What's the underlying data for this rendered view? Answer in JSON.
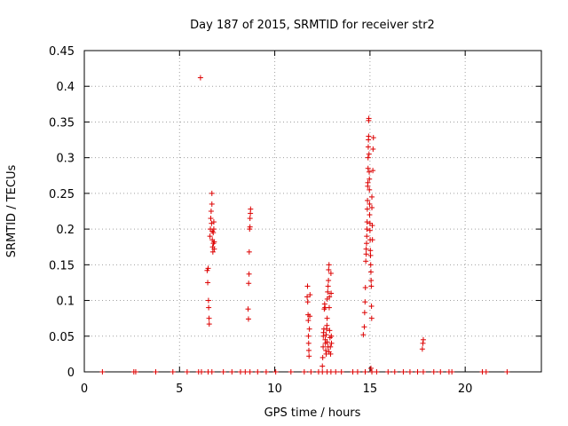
{
  "chart_data": {
    "type": "scatter",
    "title": "Day 187 of 2015, SRMTID for receiver str2",
    "xlabel": "GPS time / hours",
    "ylabel": "SRMTID / TECUs",
    "xlim": [
      0,
      24
    ],
    "ylim": [
      0,
      0.45
    ],
    "x_ticks": [
      "0",
      "5",
      "10",
      "15",
      "20"
    ],
    "y_ticks": [
      "0",
      "0.05",
      "0.1",
      "0.15",
      "0.2",
      "0.25",
      "0.3",
      "0.35",
      "0.4",
      "0.45"
    ],
    "grid": true,
    "marker": "+",
    "marker_color": "#dd0000",
    "series": [
      {
        "points": [
          [
            0.95,
            0
          ],
          [
            2.6,
            0
          ],
          [
            2.7,
            0
          ],
          [
            3.75,
            0
          ],
          [
            4.65,
            0
          ],
          [
            5.4,
            0
          ],
          [
            6.0,
            0
          ],
          [
            6.15,
            0
          ],
          [
            6.5,
            0
          ],
          [
            6.7,
            0
          ],
          [
            7.3,
            0
          ],
          [
            7.75,
            0
          ],
          [
            8.2,
            0
          ],
          [
            8.45,
            0
          ],
          [
            8.7,
            0
          ],
          [
            9.1,
            0
          ],
          [
            9.55,
            0
          ],
          [
            10.05,
            0
          ],
          [
            10.85,
            0
          ],
          [
            11.55,
            0
          ],
          [
            11.9,
            0
          ],
          [
            12.3,
            0
          ],
          [
            12.5,
            0
          ],
          [
            12.75,
            0
          ],
          [
            12.95,
            0
          ],
          [
            13.2,
            0
          ],
          [
            13.5,
            0
          ],
          [
            14.1,
            0
          ],
          [
            14.35,
            0
          ],
          [
            14.75,
            0
          ],
          [
            15.1,
            0
          ],
          [
            15.35,
            0
          ],
          [
            15.95,
            0
          ],
          [
            16.3,
            0
          ],
          [
            16.75,
            0
          ],
          [
            17.1,
            0
          ],
          [
            17.5,
            0
          ],
          [
            17.8,
            0
          ],
          [
            18.35,
            0
          ],
          [
            18.7,
            0
          ],
          [
            19.15,
            0
          ],
          [
            19.3,
            0
          ],
          [
            20.9,
            0
          ],
          [
            21.1,
            0
          ],
          [
            22.2,
            0
          ],
          [
            6.1,
            0.412
          ],
          [
            6.45,
            0.142
          ],
          [
            6.48,
            0.125
          ],
          [
            6.5,
            0.145
          ],
          [
            6.52,
            0.1
          ],
          [
            6.53,
            0.09
          ],
          [
            6.55,
            0.075
          ],
          [
            6.56,
            0.067
          ],
          [
            6.6,
            0.19
          ],
          [
            6.62,
            0.2
          ],
          [
            6.64,
            0.215
          ],
          [
            6.66,
            0.225
          ],
          [
            6.68,
            0.208
          ],
          [
            6.7,
            0.25
          ],
          [
            6.7,
            0.235
          ],
          [
            6.72,
            0.197
          ],
          [
            6.72,
            0.185
          ],
          [
            6.74,
            0.175
          ],
          [
            6.75,
            0.168
          ],
          [
            6.77,
            0.195
          ],
          [
            6.78,
            0.18
          ],
          [
            6.8,
            0.21
          ],
          [
            6.8,
            0.2
          ],
          [
            6.82,
            0.182
          ],
          [
            6.82,
            0.172
          ],
          [
            8.6,
            0.088
          ],
          [
            8.62,
            0.074
          ],
          [
            8.63,
            0.124
          ],
          [
            8.65,
            0.137
          ],
          [
            8.66,
            0.168
          ],
          [
            8.68,
            0.2
          ],
          [
            8.7,
            0.203
          ],
          [
            8.7,
            0.215
          ],
          [
            8.72,
            0.222
          ],
          [
            8.73,
            0.228
          ],
          [
            11.7,
            0.105
          ],
          [
            11.72,
            0.12
          ],
          [
            11.73,
            0.098
          ],
          [
            11.75,
            0.08
          ],
          [
            11.76,
            0.072
          ],
          [
            11.77,
            0.05
          ],
          [
            11.78,
            0.04
          ],
          [
            11.79,
            0.03
          ],
          [
            11.8,
            0.022
          ],
          [
            11.82,
            0.06
          ],
          [
            11.84,
            0.078
          ],
          [
            11.85,
            0.108
          ],
          [
            12.5,
            0.008
          ],
          [
            12.52,
            0.02
          ],
          [
            12.54,
            0.035
          ],
          [
            12.55,
            0.05
          ],
          [
            12.56,
            0.055
          ],
          [
            12.58,
            0.06
          ],
          [
            12.6,
            0.088
          ],
          [
            12.62,
            0.095
          ],
          [
            12.64,
            0.09
          ],
          [
            12.65,
            0.045
          ],
          [
            12.66,
            0.04
          ],
          [
            12.68,
            0.03
          ],
          [
            12.7,
            0.025
          ],
          [
            12.72,
            0.06
          ],
          [
            12.74,
            0.065
          ],
          [
            12.75,
            0.075
          ],
          [
            12.76,
            0.102
          ],
          [
            12.78,
            0.112
          ],
          [
            12.8,
            0.12
          ],
          [
            12.82,
            0.128
          ],
          [
            12.83,
            0.143
          ],
          [
            12.85,
            0.15
          ],
          [
            12.86,
            0.09
          ],
          [
            12.87,
            0.105
          ],
          [
            12.88,
            0.058
          ],
          [
            12.9,
            0.048
          ],
          [
            12.92,
            0.035
          ],
          [
            12.93,
            0.025
          ],
          [
            12.95,
            0.138
          ],
          [
            12.96,
            0.11
          ],
          [
            12.97,
            0.05
          ],
          [
            12.98,
            0.04
          ],
          [
            12.7,
            0.052
          ],
          [
            12.75,
            0.042
          ],
          [
            12.8,
            0.035
          ],
          [
            12.85,
            0.028
          ],
          [
            14.65,
            0.052
          ],
          [
            14.7,
            0.063
          ],
          [
            14.72,
            0.083
          ],
          [
            14.74,
            0.098
          ],
          [
            14.76,
            0.118
          ],
          [
            14.78,
            0.155
          ],
          [
            14.8,
            0.165
          ],
          [
            14.8,
            0.172
          ],
          [
            14.82,
            0.18
          ],
          [
            14.83,
            0.19
          ],
          [
            14.84,
            0.2
          ],
          [
            14.85,
            0.21
          ],
          [
            14.86,
            0.228
          ],
          [
            14.87,
            0.24
          ],
          [
            14.88,
            0.26
          ],
          [
            14.89,
            0.265
          ],
          [
            14.9,
            0.285
          ],
          [
            14.9,
            0.3
          ],
          [
            14.91,
            0.315
          ],
          [
            14.92,
            0.325
          ],
          [
            14.93,
            0.33
          ],
          [
            14.93,
            0.352
          ],
          [
            14.94,
            0.355
          ],
          [
            14.95,
            0.305
          ],
          [
            14.96,
            0.28
          ],
          [
            14.97,
            0.27
          ],
          [
            14.97,
            0.255
          ],
          [
            14.98,
            0.235
          ],
          [
            14.98,
            0.22
          ],
          [
            15.0,
            0.208
          ],
          [
            15.0,
            0.198
          ],
          [
            15.01,
            0.185
          ],
          [
            15.02,
            0.17
          ],
          [
            15.03,
            0.163
          ],
          [
            15.04,
            0.15
          ],
          [
            15.05,
            0.14
          ],
          [
            15.06,
            0.128
          ],
          [
            15.07,
            0.12
          ],
          [
            15.08,
            0.092
          ],
          [
            15.09,
            0.075
          ],
          [
            15.1,
            0.245
          ],
          [
            15.1,
            0.23
          ],
          [
            15.12,
            0.205
          ],
          [
            15.13,
            0.185
          ],
          [
            15.15,
            0.282
          ],
          [
            15.16,
            0.312
          ],
          [
            15.18,
            0.328
          ],
          [
            15.05,
            0.005
          ],
          [
            17.75,
            0.032
          ],
          [
            17.78,
            0.04
          ],
          [
            17.8,
            0.045
          ]
        ]
      }
    ]
  }
}
